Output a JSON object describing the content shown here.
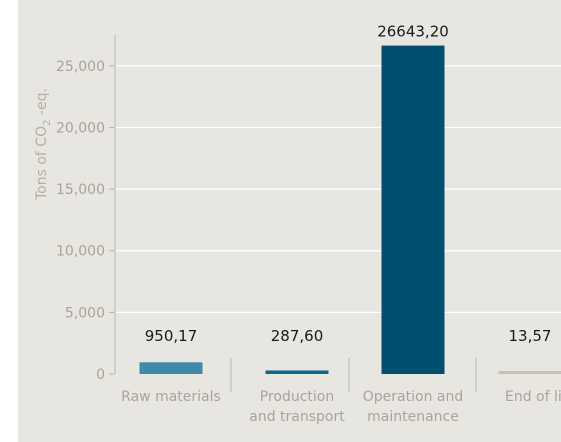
{
  "chart_data": {
    "type": "bar",
    "title": "",
    "xlabel": "",
    "ylabel_parts": {
      "pre": "Tons of CO",
      "sub": "2",
      "post": " -eq."
    },
    "ylim": [
      0,
      27500
    ],
    "yticks": [
      0,
      5000,
      10000,
      15000,
      20000,
      25000
    ],
    "ytick_labels": [
      "0",
      "5,000",
      "10,000",
      "15,000",
      "20,000",
      "25,000"
    ],
    "grid": true,
    "categories": [
      {
        "lines": [
          "Raw materials"
        ]
      },
      {
        "lines": [
          "Production",
          "and transport"
        ]
      },
      {
        "lines": [
          "Operation and",
          "maintenance"
        ]
      },
      {
        "lines": [
          "End of life"
        ]
      }
    ],
    "values": [
      950.17,
      287.6,
      26643.2,
      13.57
    ],
    "value_labels": [
      "950,17",
      "287,60",
      "26643,20",
      "13,57"
    ],
    "colors": [
      "#3e8aa8",
      "#0b6787",
      "#004f6f",
      "#c5c1b6"
    ]
  }
}
